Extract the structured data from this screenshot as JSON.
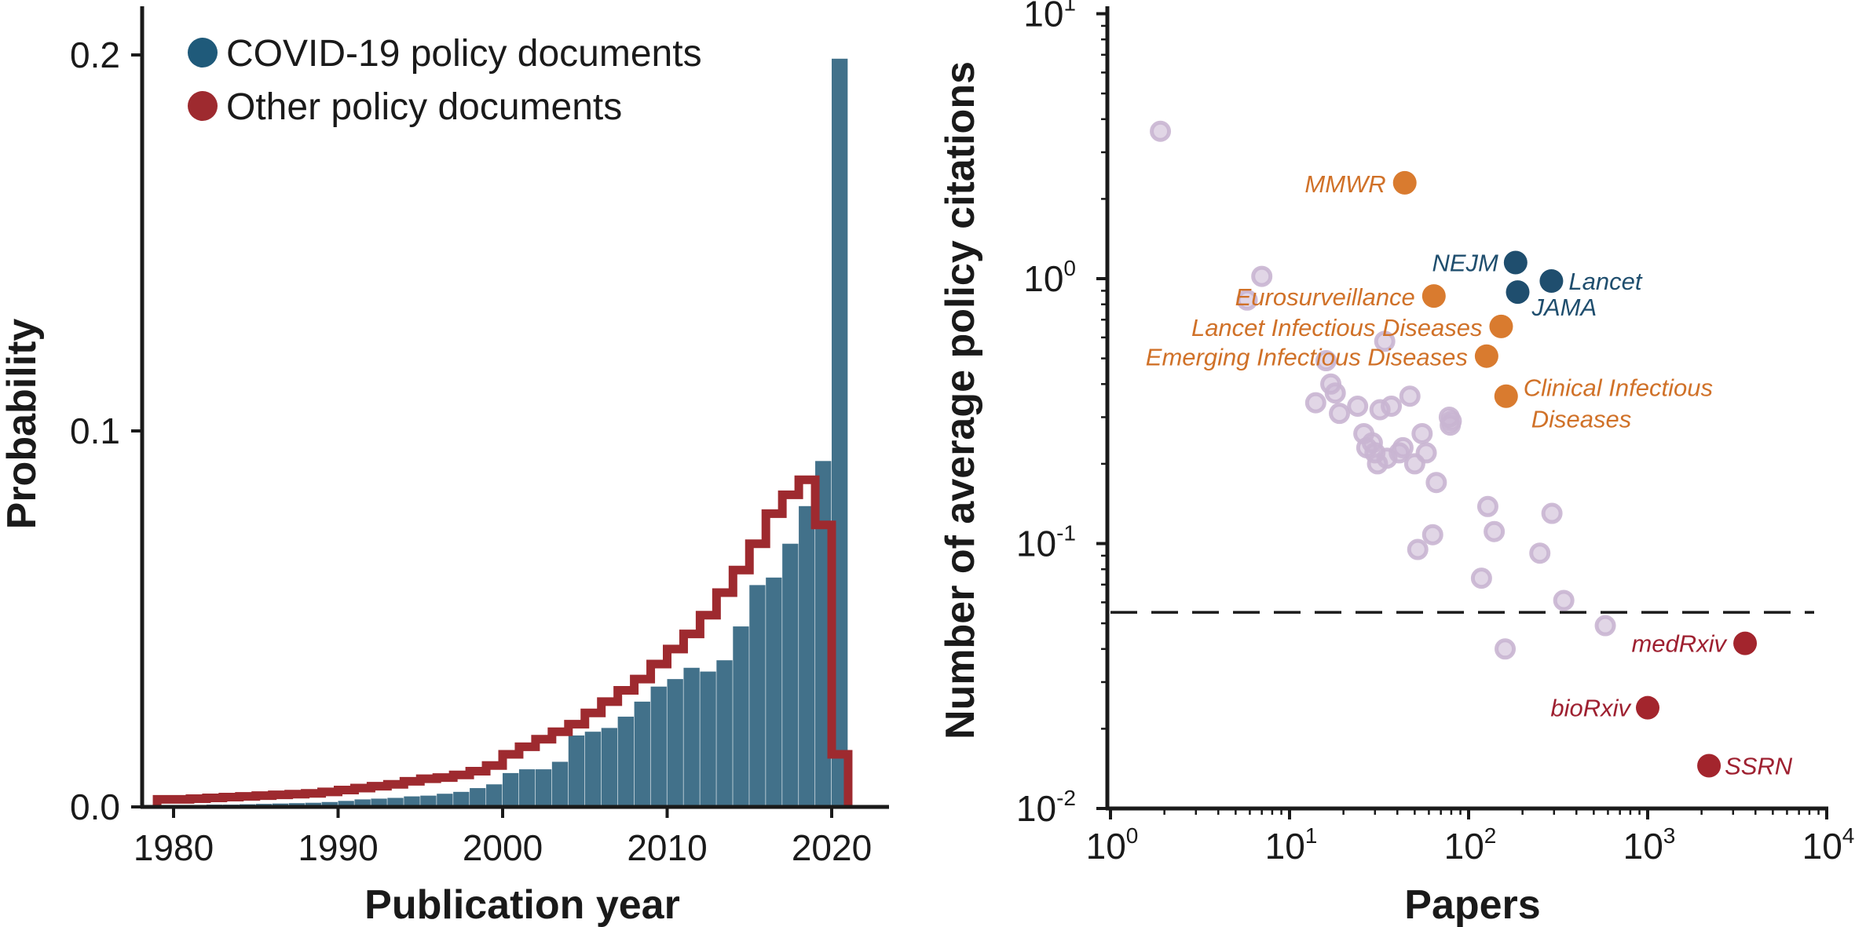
{
  "chart_data": [
    {
      "type": "histogram",
      "xlabel": "Publication year",
      "ylabel": "Probability",
      "xlim": [
        1977.5,
        2022.5
      ],
      "ylim": [
        0,
        0.22
      ],
      "xticks": [
        1980,
        1990,
        2000,
        2010,
        2020
      ],
      "xtick_labels": [
        "1980",
        "1990",
        "2000",
        "2010",
        "2020"
      ],
      "yticks": [
        0.0,
        0.1,
        0.2
      ],
      "ytick_labels": [
        "0.0",
        "0.1",
        "0.2"
      ],
      "legend": [
        {
          "label": "COVID-19 policy documents",
          "color": "#1f5a7a"
        },
        {
          "label": "Other policy documents",
          "color": "#9e2a2f"
        }
      ],
      "bin_edges": [
        1979,
        1980,
        1981,
        1982,
        1983,
        1984,
        1985,
        1986,
        1987,
        1988,
        1989,
        1990,
        1991,
        1992,
        1993,
        1994,
        1995,
        1996,
        1997,
        1998,
        1999,
        2000,
        2001,
        2002,
        2003,
        2004,
        2005,
        2006,
        2007,
        2008,
        2009,
        2010,
        2011,
        2012,
        2013,
        2014,
        2015,
        2016,
        2017,
        2018,
        2019,
        2020,
        2021
      ],
      "series": [
        {
          "name": "COVID-19 policy documents",
          "style": "filled",
          "color": "#42718a",
          "values": [
            0.0005,
            0.0005,
            0.0005,
            0.0006,
            0.0006,
            0.0007,
            0.0008,
            0.0009,
            0.001,
            0.0011,
            0.0013,
            0.0016,
            0.002,
            0.0022,
            0.0024,
            0.0028,
            0.003,
            0.0035,
            0.004,
            0.005,
            0.006,
            0.009,
            0.01,
            0.01,
            0.012,
            0.019,
            0.02,
            0.021,
            0.024,
            0.028,
            0.032,
            0.034,
            0.037,
            0.036,
            0.039,
            0.048,
            0.059,
            0.061,
            0.07,
            0.08,
            0.092,
            0.199
          ]
        },
        {
          "name": "Other policy documents",
          "style": "step",
          "color": "#9e2a2f",
          "values": [
            0.002,
            0.002,
            0.0022,
            0.0024,
            0.0026,
            0.0028,
            0.003,
            0.0032,
            0.0034,
            0.0036,
            0.004,
            0.0045,
            0.005,
            0.0055,
            0.006,
            0.0068,
            0.0075,
            0.0078,
            0.0085,
            0.0095,
            0.011,
            0.014,
            0.016,
            0.018,
            0.02,
            0.022,
            0.025,
            0.028,
            0.031,
            0.034,
            0.038,
            0.042,
            0.046,
            0.051,
            0.057,
            0.063,
            0.07,
            0.078,
            0.083,
            0.087,
            0.075,
            0.014
          ]
        }
      ]
    },
    {
      "type": "scatter",
      "xlabel": "Papers",
      "ylabel": "Number of average policy citations",
      "xscale": "log",
      "yscale": "log",
      "xlim": [
        1,
        10000
      ],
      "ylim": [
        0.01,
        10
      ],
      "xticks": [
        1,
        10,
        100,
        1000,
        10000
      ],
      "xtick_labels": [
        {
          "base": "10",
          "exp": "0"
        },
        {
          "base": "10",
          "exp": "1"
        },
        {
          "base": "10",
          "exp": "2"
        },
        {
          "base": "10",
          "exp": "3"
        },
        {
          "base": "10",
          "exp": "4"
        }
      ],
      "yticks": [
        0.01,
        0.1,
        1,
        10
      ],
      "ytick_labels": [
        {
          "base": "10",
          "exp": "-2"
        },
        {
          "base": "10",
          "exp": "-1"
        },
        {
          "base": "10",
          "exp": "0"
        },
        {
          "base": "10",
          "exp": "1"
        }
      ],
      "reference_line": {
        "y": 0.055,
        "style": "dashed"
      },
      "background_points": {
        "color": "#c9b5d1",
        "points": [
          [
            1.9,
            3.6
          ],
          [
            5.8,
            0.83
          ],
          [
            7.0,
            1.02
          ],
          [
            14,
            0.34
          ],
          [
            16,
            0.49
          ],
          [
            17,
            0.4
          ],
          [
            18,
            0.37
          ],
          [
            19,
            0.31
          ],
          [
            24,
            0.33
          ],
          [
            26,
            0.26
          ],
          [
            27,
            0.23
          ],
          [
            29,
            0.24
          ],
          [
            30,
            0.22
          ],
          [
            31,
            0.2
          ],
          [
            32,
            0.32
          ],
          [
            34,
            0.58
          ],
          [
            35,
            0.21
          ],
          [
            37,
            0.33
          ],
          [
            41,
            0.22
          ],
          [
            43,
            0.23
          ],
          [
            47,
            0.36
          ],
          [
            50,
            0.2
          ],
          [
            52,
            0.095
          ],
          [
            55,
            0.26
          ],
          [
            58,
            0.22
          ],
          [
            63,
            0.108
          ],
          [
            66,
            0.17
          ],
          [
            78,
            0.3
          ],
          [
            79,
            0.28
          ],
          [
            80,
            0.29
          ],
          [
            118,
            0.074
          ],
          [
            128,
            0.138
          ],
          [
            139,
            0.111
          ],
          [
            160,
            0.04
          ],
          [
            250,
            0.092
          ],
          [
            292,
            0.13
          ],
          [
            340,
            0.061
          ],
          [
            580,
            0.049
          ]
        ]
      },
      "highlighted": [
        {
          "label": "MMWR",
          "x": 44,
          "y": 2.3,
          "group": "orange"
        },
        {
          "label": "NEJM",
          "x": 183,
          "y": 1.15,
          "group": "blue"
        },
        {
          "label": "Lancet",
          "x": 290,
          "y": 0.98,
          "group": "blue"
        },
        {
          "label": "JAMA",
          "x": 188,
          "y": 0.89,
          "group": "blue"
        },
        {
          "label": "Eurosurveillance",
          "x": 64,
          "y": 0.86,
          "group": "orange"
        },
        {
          "label": "Lancet Infectious Diseases",
          "x": 152,
          "y": 0.66,
          "group": "orange"
        },
        {
          "label": "Emerging Infectious Diseases",
          "x": 126,
          "y": 0.51,
          "group": "orange"
        },
        {
          "label": "Clinical Infectious Diseases",
          "label_lines": [
            "Clinical Infectious",
            "Diseases"
          ],
          "x": 162,
          "y": 0.36,
          "group": "orange"
        },
        {
          "label": "medRxiv",
          "x": 3500,
          "y": 0.042,
          "group": "red"
        },
        {
          "label": "bioRxiv",
          "x": 1000,
          "y": 0.024,
          "group": "red"
        },
        {
          "label": "SSRN",
          "x": 2200,
          "y": 0.0145,
          "group": "red"
        }
      ],
      "group_colors": {
        "blue": "#1f4e6e",
        "orange": "#d97b2f",
        "red": "#a3252d"
      },
      "label_colors": {
        "blue": "#1f4e6e",
        "orange": "#d07128",
        "red": "#9e2030"
      }
    }
  ]
}
